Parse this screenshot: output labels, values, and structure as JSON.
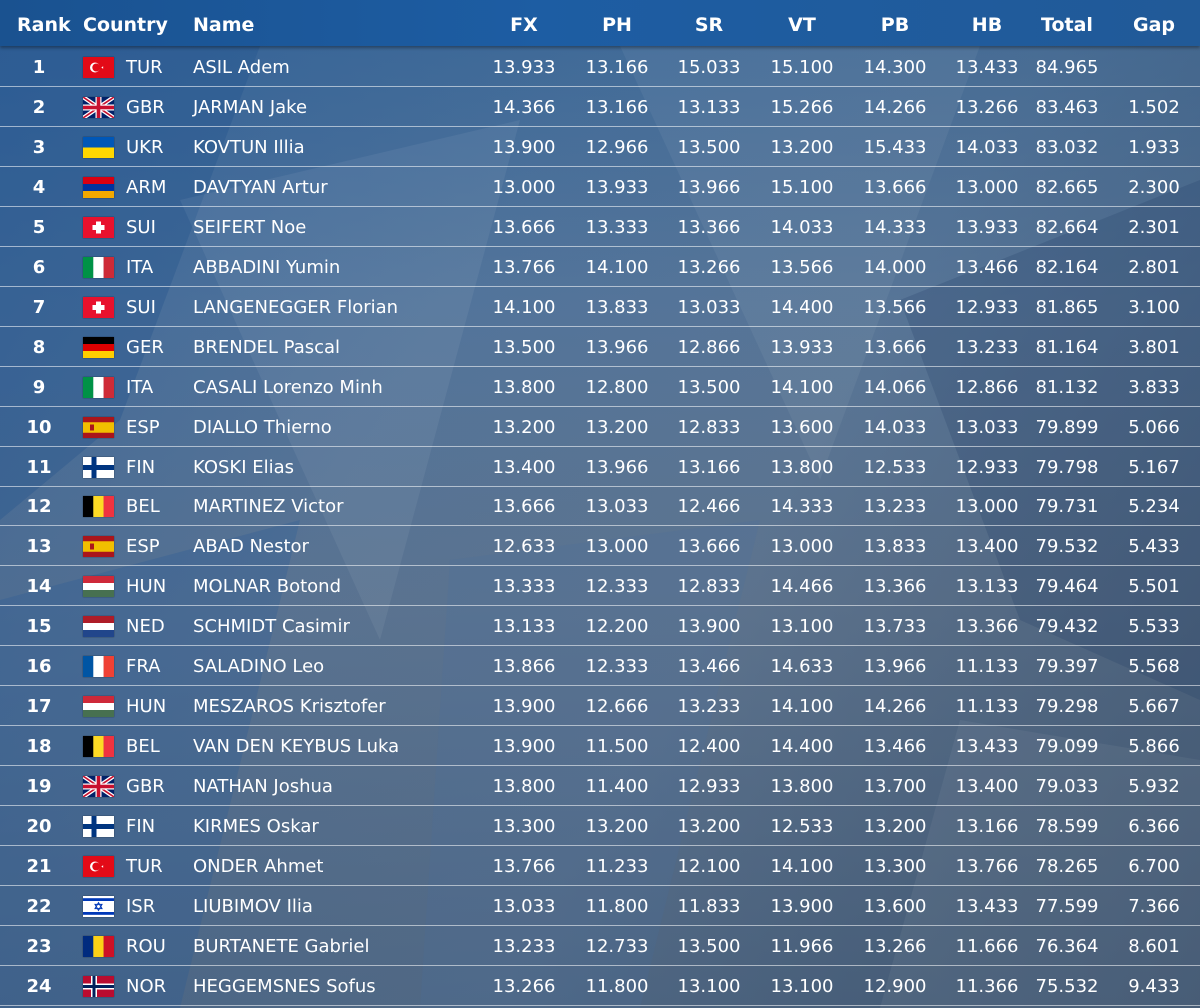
{
  "columns": {
    "rank": "Rank",
    "country": "Country",
    "name": "Name",
    "fx": "FX",
    "ph": "PH",
    "sr": "SR",
    "vt": "VT",
    "pb": "PB",
    "hb": "HB",
    "total": "Total",
    "gap": "Gap"
  },
  "rows": [
    {
      "rank": "1",
      "code": "TUR",
      "flag": "turkey-flag-icon",
      "name": "ASIL Adem",
      "fx": "13.933",
      "ph": "13.166",
      "sr": "15.033",
      "vt": "15.100",
      "pb": "14.300",
      "hb": "13.433",
      "total": "84.965",
      "gap": ""
    },
    {
      "rank": "2",
      "code": "GBR",
      "flag": "uk-flag-icon",
      "name": "JARMAN Jake",
      "fx": "14.366",
      "ph": "13.166",
      "sr": "13.133",
      "vt": "15.266",
      "pb": "14.266",
      "hb": "13.266",
      "total": "83.463",
      "gap": "1.502"
    },
    {
      "rank": "3",
      "code": "UKR",
      "flag": "ukraine-flag-icon",
      "name": "KOVTUN Illia",
      "fx": "13.900",
      "ph": "12.966",
      "sr": "13.500",
      "vt": "13.200",
      "pb": "15.433",
      "hb": "14.033",
      "total": "83.032",
      "gap": "1.933"
    },
    {
      "rank": "4",
      "code": "ARM",
      "flag": "armenia-flag-icon",
      "name": "DAVTYAN Artur",
      "fx": "13.000",
      "ph": "13.933",
      "sr": "13.966",
      "vt": "15.100",
      "pb": "13.666",
      "hb": "13.000",
      "total": "82.665",
      "gap": "2.300"
    },
    {
      "rank": "5",
      "code": "SUI",
      "flag": "switzerland-flag-icon",
      "name": "SEIFERT Noe",
      "fx": "13.666",
      "ph": "13.333",
      "sr": "13.366",
      "vt": "14.033",
      "pb": "14.333",
      "hb": "13.933",
      "total": "82.664",
      "gap": "2.301"
    },
    {
      "rank": "6",
      "code": "ITA",
      "flag": "italy-flag-icon",
      "name": "ABBADINI Yumin",
      "fx": "13.766",
      "ph": "14.100",
      "sr": "13.266",
      "vt": "13.566",
      "pb": "14.000",
      "hb": "13.466",
      "total": "82.164",
      "gap": "2.801"
    },
    {
      "rank": "7",
      "code": "SUI",
      "flag": "switzerland-flag-icon",
      "name": "LANGENEGGER Florian",
      "fx": "14.100",
      "ph": "13.833",
      "sr": "13.033",
      "vt": "14.400",
      "pb": "13.566",
      "hb": "12.933",
      "total": "81.865",
      "gap": "3.100"
    },
    {
      "rank": "8",
      "code": "GER",
      "flag": "germany-flag-icon",
      "name": "BRENDEL Pascal",
      "fx": "13.500",
      "ph": "13.966",
      "sr": "12.866",
      "vt": "13.933",
      "pb": "13.666",
      "hb": "13.233",
      "total": "81.164",
      "gap": "3.801"
    },
    {
      "rank": "9",
      "code": "ITA",
      "flag": "italy-flag-icon",
      "name": "CASALI Lorenzo Minh",
      "fx": "13.800",
      "ph": "12.800",
      "sr": "13.500",
      "vt": "14.100",
      "pb": "14.066",
      "hb": "12.866",
      "total": "81.132",
      "gap": "3.833"
    },
    {
      "rank": "10",
      "code": "ESP",
      "flag": "spain-flag-icon",
      "name": "DIALLO Thierno",
      "fx": "13.200",
      "ph": "13.200",
      "sr": "12.833",
      "vt": "13.600",
      "pb": "14.033",
      "hb": "13.033",
      "total": "79.899",
      "gap": "5.066"
    },
    {
      "rank": "11",
      "code": "FIN",
      "flag": "finland-flag-icon",
      "name": "KOSKI Elias",
      "fx": "13.400",
      "ph": "13.966",
      "sr": "13.166",
      "vt": "13.800",
      "pb": "12.533",
      "hb": "12.933",
      "total": "79.798",
      "gap": "5.167"
    },
    {
      "rank": "12",
      "code": "BEL",
      "flag": "belgium-flag-icon",
      "name": "MARTINEZ Victor",
      "fx": "13.666",
      "ph": "13.033",
      "sr": "12.466",
      "vt": "14.333",
      "pb": "13.233",
      "hb": "13.000",
      "total": "79.731",
      "gap": "5.234"
    },
    {
      "rank": "13",
      "code": "ESP",
      "flag": "spain-flag-icon",
      "name": "ABAD Nestor",
      "fx": "12.633",
      "ph": "13.000",
      "sr": "13.666",
      "vt": "13.000",
      "pb": "13.833",
      "hb": "13.400",
      "total": "79.532",
      "gap": "5.433"
    },
    {
      "rank": "14",
      "code": "HUN",
      "flag": "hungary-flag-icon",
      "name": "MOLNAR Botond",
      "fx": "13.333",
      "ph": "12.333",
      "sr": "12.833",
      "vt": "14.466",
      "pb": "13.366",
      "hb": "13.133",
      "total": "79.464",
      "gap": "5.501"
    },
    {
      "rank": "15",
      "code": "NED",
      "flag": "netherlands-flag-icon",
      "name": "SCHMIDT Casimir",
      "fx": "13.133",
      "ph": "12.200",
      "sr": "13.900",
      "vt": "13.100",
      "pb": "13.733",
      "hb": "13.366",
      "total": "79.432",
      "gap": "5.533"
    },
    {
      "rank": "16",
      "code": "FRA",
      "flag": "france-flag-icon",
      "name": "SALADINO Leo",
      "fx": "13.866",
      "ph": "12.333",
      "sr": "13.466",
      "vt": "14.633",
      "pb": "13.966",
      "hb": "11.133",
      "total": "79.397",
      "gap": "5.568"
    },
    {
      "rank": "17",
      "code": "HUN",
      "flag": "hungary-flag-icon",
      "name": "MESZAROS Krisztofer",
      "fx": "13.900",
      "ph": "12.666",
      "sr": "13.233",
      "vt": "14.100",
      "pb": "14.266",
      "hb": "11.133",
      "total": "79.298",
      "gap": "5.667"
    },
    {
      "rank": "18",
      "code": "BEL",
      "flag": "belgium-flag-icon",
      "name": "VAN DEN KEYBUS Luka",
      "fx": "13.900",
      "ph": "11.500",
      "sr": "12.400",
      "vt": "14.400",
      "pb": "13.466",
      "hb": "13.433",
      "total": "79.099",
      "gap": "5.866"
    },
    {
      "rank": "19",
      "code": "GBR",
      "flag": "uk-flag-icon",
      "name": "NATHAN Joshua",
      "fx": "13.800",
      "ph": "11.400",
      "sr": "12.933",
      "vt": "13.800",
      "pb": "13.700",
      "hb": "13.400",
      "total": "79.033",
      "gap": "5.932"
    },
    {
      "rank": "20",
      "code": "FIN",
      "flag": "finland-flag-icon",
      "name": "KIRMES Oskar",
      "fx": "13.300",
      "ph": "13.200",
      "sr": "13.200",
      "vt": "12.533",
      "pb": "13.200",
      "hb": "13.166",
      "total": "78.599",
      "gap": "6.366"
    },
    {
      "rank": "21",
      "code": "TUR",
      "flag": "turkey-flag-icon",
      "name": "ONDER Ahmet",
      "fx": "13.766",
      "ph": "11.233",
      "sr": "12.100",
      "vt": "14.100",
      "pb": "13.300",
      "hb": "13.766",
      "total": "78.265",
      "gap": "6.700"
    },
    {
      "rank": "22",
      "code": "ISR",
      "flag": "israel-flag-icon",
      "name": "LIUBIMOV Ilia",
      "fx": "13.033",
      "ph": "11.800",
      "sr": "11.833",
      "vt": "13.900",
      "pb": "13.600",
      "hb": "13.433",
      "total": "77.599",
      "gap": "7.366"
    },
    {
      "rank": "23",
      "code": "ROU",
      "flag": "romania-flag-icon",
      "name": "BURTANETE Gabriel",
      "fx": "13.233",
      "ph": "12.733",
      "sr": "13.500",
      "vt": "11.966",
      "pb": "13.266",
      "hb": "11.666",
      "total": "76.364",
      "gap": "8.601"
    },
    {
      "rank": "24",
      "code": "NOR",
      "flag": "norway-flag-icon",
      "name": "HEGGEMSNES Sofus",
      "fx": "13.266",
      "ph": "11.800",
      "sr": "13.100",
      "vt": "13.100",
      "pb": "12.900",
      "hb": "11.366",
      "total": "75.532",
      "gap": "9.433"
    }
  ],
  "colors": {
    "header_bg": "#1d5da3",
    "text": "#ffffff",
    "row_divider": "#ffffff"
  }
}
